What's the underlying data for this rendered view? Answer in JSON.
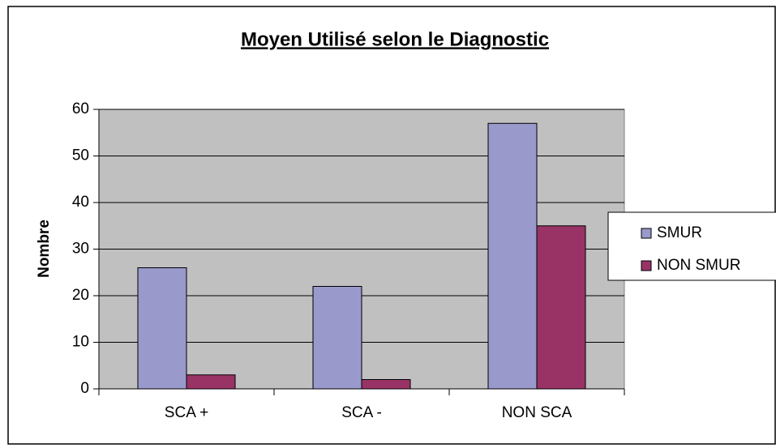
{
  "chart_data": {
    "type": "bar",
    "title": "Moyen Utilisé selon le Diagnostic",
    "y_label": "Nombre",
    "categories": [
      "SCA +",
      "SCA -",
      "NON SCA"
    ],
    "series": [
      {
        "name": "SMUR",
        "color": "#9999cc",
        "values": [
          26,
          22,
          57
        ]
      },
      {
        "name": "NON SMUR",
        "color": "#993366",
        "values": [
          3,
          2,
          35
        ]
      }
    ],
    "ylim": [
      0,
      60
    ],
    "yticks": [
      0,
      10,
      20,
      30,
      40,
      50,
      60
    ],
    "grid": true,
    "legend": "right",
    "plot_background": "#c0c0c0"
  }
}
